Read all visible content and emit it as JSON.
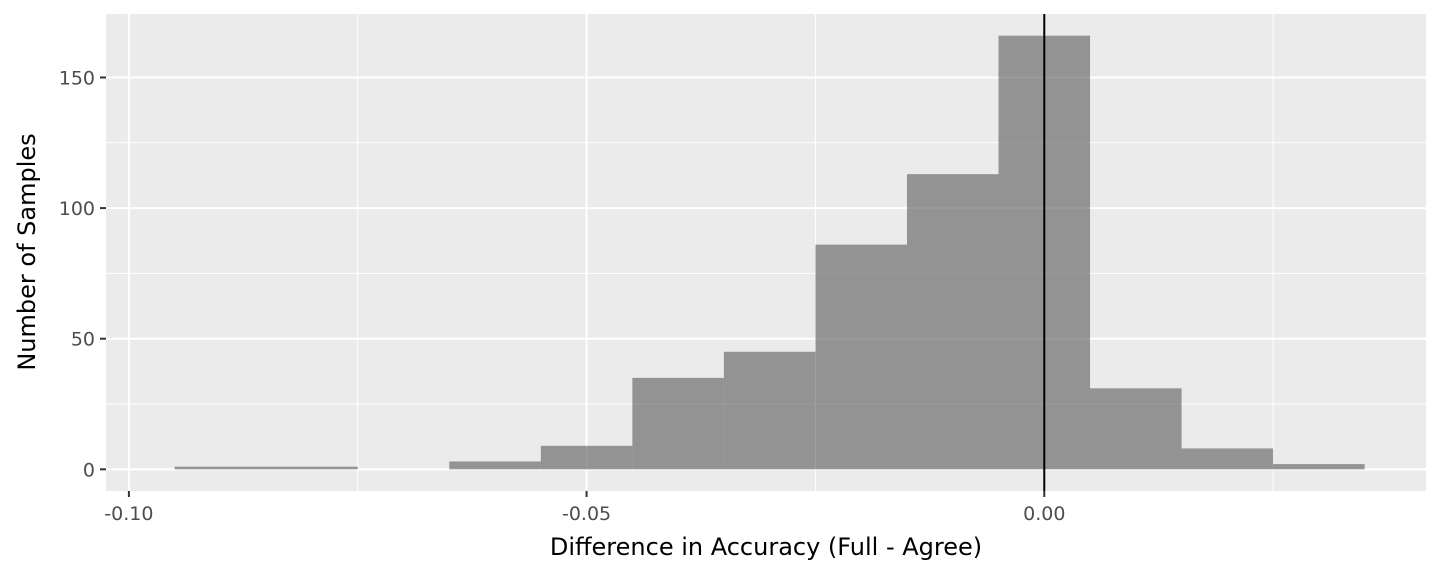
{
  "chart_data": {
    "type": "bar",
    "title": "",
    "xlabel": "Difference in Accuracy (Full - Agree)",
    "ylabel": "Number of Samples",
    "xlim": [
      -0.1025,
      0.0417
    ],
    "ylim": [
      -8.3,
      174.3
    ],
    "x_ticks": [
      {
        "value": -0.1,
        "label": "-0.10"
      },
      {
        "value": -0.05,
        "label": "-0.05"
      },
      {
        "value": 0.0,
        "label": "0.00"
      }
    ],
    "y_ticks": [
      {
        "value": 0,
        "label": "0"
      },
      {
        "value": 50,
        "label": "50"
      },
      {
        "value": 100,
        "label": "100"
      },
      {
        "value": 150,
        "label": "150"
      }
    ],
    "x_minor_breaks": [
      -0.075,
      -0.025,
      0.025
    ],
    "y_minor_breaks": [
      25,
      75,
      125
    ],
    "bin_width": 0.01,
    "bins": [
      {
        "x": -0.09,
        "count": 1
      },
      {
        "x": -0.08,
        "count": 1
      },
      {
        "x": -0.07,
        "count": 0
      },
      {
        "x": -0.06,
        "count": 3
      },
      {
        "x": -0.05,
        "count": 9
      },
      {
        "x": -0.04,
        "count": 35
      },
      {
        "x": -0.03,
        "count": 45
      },
      {
        "x": -0.02,
        "count": 86
      },
      {
        "x": -0.01,
        "count": 113
      },
      {
        "x": 0.0,
        "count": 166
      },
      {
        "x": 0.01,
        "count": 31
      },
      {
        "x": 0.02,
        "count": 8
      },
      {
        "x": 0.03,
        "count": 2
      }
    ],
    "reference_line_x": 0,
    "grid": true,
    "legend": "none",
    "colors": {
      "panel_background": "#EBEBEB",
      "grid_major": "#FFFFFF",
      "grid_minor": "#FFFFFF",
      "bar_fill": "#595959",
      "bar_opacity": 0.6,
      "reference_line": "#000000",
      "tick_mark": "#333333",
      "tick_label": "#4D4D4D",
      "axis_title": "#000000"
    }
  }
}
